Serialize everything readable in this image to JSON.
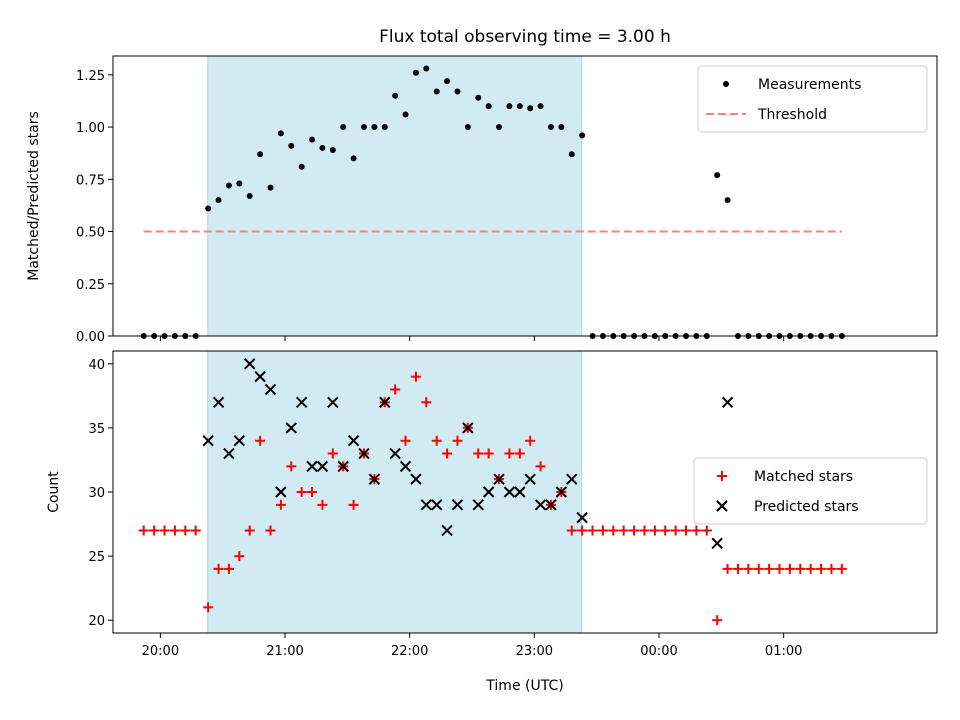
{
  "chart_data": {
    "type": "scatter",
    "title": "Flux total observing time = 3.00 h",
    "xlabel": "Time (UTC)",
    "x_tick_labels": [
      "20:00",
      "21:00",
      "22:00",
      "23:00",
      "00:00",
      "01:00"
    ],
    "x_ticks_hours": [
      20,
      21,
      22,
      23,
      24,
      25
    ],
    "xlim_hours": [
      19.62,
      26.23
    ],
    "shaded_interval_hours": [
      20.38,
      23.38
    ],
    "shade_color": "#add8e6",
    "panels": [
      {
        "ylabel": "Matched/Predicted stars",
        "ylim": [
          0,
          1.34
        ],
        "y_ticks": [
          0.0,
          0.25,
          0.5,
          0.75,
          1.0,
          1.25
        ],
        "y_tick_labels": [
          "0.00",
          "0.25",
          "0.50",
          "0.75",
          "1.00",
          "1.25"
        ],
        "legend": {
          "position": "upper right",
          "entries": [
            "Measurements",
            "Threshold"
          ]
        },
        "series": [
          {
            "name": "Measurements",
            "marker": "dot",
            "color": "#000000",
            "points": [
              [
                "19:52",
                0.0
              ],
              [
                "19:57",
                0.0
              ],
              [
                "20:02",
                0.0
              ],
              [
                "20:07",
                0.0
              ],
              [
                "20:12",
                0.0
              ],
              [
                "20:17",
                0.0
              ],
              [
                "20:23",
                0.61
              ],
              [
                "20:28",
                0.65
              ],
              [
                "20:33",
                0.72
              ],
              [
                "20:38",
                0.73
              ],
              [
                "20:43",
                0.67
              ],
              [
                "20:48",
                0.87
              ],
              [
                "20:53",
                0.71
              ],
              [
                "20:58",
                0.97
              ],
              [
                "21:03",
                0.91
              ],
              [
                "21:08",
                0.81
              ],
              [
                "21:13",
                0.94
              ],
              [
                "21:18",
                0.9
              ],
              [
                "21:23",
                0.89
              ],
              [
                "21:28",
                1.0
              ],
              [
                "21:33",
                0.85
              ],
              [
                "21:38",
                1.0
              ],
              [
                "21:43",
                1.0
              ],
              [
                "21:48",
                1.0
              ],
              [
                "21:53",
                1.15
              ],
              [
                "21:58",
                1.06
              ],
              [
                "22:03",
                1.26
              ],
              [
                "22:08",
                1.28
              ],
              [
                "22:13",
                1.17
              ],
              [
                "22:18",
                1.22
              ],
              [
                "22:23",
                1.17
              ],
              [
                "22:28",
                1.0
              ],
              [
                "22:33",
                1.14
              ],
              [
                "22:38",
                1.1
              ],
              [
                "22:43",
                1.0
              ],
              [
                "22:48",
                1.1
              ],
              [
                "22:53",
                1.1
              ],
              [
                "22:58",
                1.09
              ],
              [
                "23:03",
                1.1
              ],
              [
                "23:08",
                1.0
              ],
              [
                "23:13",
                1.0
              ],
              [
                "23:18",
                0.87
              ],
              [
                "23:23",
                0.96
              ],
              [
                "23:28",
                0.0
              ],
              [
                "23:33",
                0.0
              ],
              [
                "23:38",
                0.0
              ],
              [
                "23:43",
                0.0
              ],
              [
                "23:48",
                0.0
              ],
              [
                "23:53",
                0.0
              ],
              [
                "23:58",
                0.0
              ],
              [
                "00:03",
                0.0
              ],
              [
                "00:08",
                0.0
              ],
              [
                "00:13",
                0.0
              ],
              [
                "00:18",
                0.0
              ],
              [
                "00:23",
                0.0
              ],
              [
                "00:28",
                0.77
              ],
              [
                "00:33",
                0.65
              ],
              [
                "00:38",
                0.0
              ],
              [
                "00:43",
                0.0
              ],
              [
                "00:48",
                0.0
              ],
              [
                "00:53",
                0.0
              ],
              [
                "00:58",
                0.0
              ],
              [
                "01:03",
                0.0
              ],
              [
                "01:08",
                0.0
              ],
              [
                "01:13",
                0.0
              ],
              [
                "01:18",
                0.0
              ],
              [
                "01:23",
                0.0
              ],
              [
                "01:28",
                0.0
              ]
            ]
          },
          {
            "name": "Threshold",
            "marker": "dashed-line",
            "color": "#ff7f7f",
            "points": [
              [
                "19:52",
                0.5
              ],
              [
                "01:28",
                0.5
              ]
            ]
          }
        ]
      },
      {
        "ylabel": "Count",
        "ylim": [
          19,
          41
        ],
        "y_ticks": [
          20,
          25,
          30,
          35,
          40
        ],
        "y_tick_labels": [
          "20",
          "25",
          "30",
          "35",
          "40"
        ],
        "legend": {
          "position": "center right",
          "entries": [
            "Matched stars",
            "Predicted stars"
          ]
        },
        "series": [
          {
            "name": "Matched stars",
            "marker": "plus",
            "color": "#ff0000",
            "points": [
              [
                "19:52",
                27
              ],
              [
                "19:57",
                27
              ],
              [
                "20:02",
                27
              ],
              [
                "20:07",
                27
              ],
              [
                "20:12",
                27
              ],
              [
                "20:17",
                27
              ],
              [
                "20:23",
                21
              ],
              [
                "20:28",
                24
              ],
              [
                "20:33",
                24
              ],
              [
                "20:38",
                25
              ],
              [
                "20:43",
                27
              ],
              [
                "20:48",
                34
              ],
              [
                "20:53",
                27
              ],
              [
                "20:58",
                29
              ],
              [
                "21:03",
                32
              ],
              [
                "21:08",
                30
              ],
              [
                "21:13",
                30
              ],
              [
                "21:18",
                29
              ],
              [
                "21:23",
                33
              ],
              [
                "21:28",
                32
              ],
              [
                "21:33",
                29
              ],
              [
                "21:38",
                33
              ],
              [
                "21:43",
                31
              ],
              [
                "21:48",
                37
              ],
              [
                "21:53",
                38
              ],
              [
                "21:58",
                34
              ],
              [
                "22:03",
                39
              ],
              [
                "22:08",
                37
              ],
              [
                "22:13",
                34
              ],
              [
                "22:18",
                33
              ],
              [
                "22:23",
                34
              ],
              [
                "22:28",
                35
              ],
              [
                "22:33",
                33
              ],
              [
                "22:38",
                33
              ],
              [
                "22:43",
                31
              ],
              [
                "22:48",
                33
              ],
              [
                "22:53",
                33
              ],
              [
                "22:58",
                34
              ],
              [
                "23:03",
                32
              ],
              [
                "23:08",
                29
              ],
              [
                "23:13",
                30
              ],
              [
                "23:18",
                27
              ],
              [
                "23:23",
                27
              ],
              [
                "23:28",
                27
              ],
              [
                "23:33",
                27
              ],
              [
                "23:38",
                27
              ],
              [
                "23:43",
                27
              ],
              [
                "23:48",
                27
              ],
              [
                "23:53",
                27
              ],
              [
                "23:58",
                27
              ],
              [
                "00:03",
                27
              ],
              [
                "00:08",
                27
              ],
              [
                "00:13",
                27
              ],
              [
                "00:18",
                27
              ],
              [
                "00:23",
                27
              ],
              [
                "00:28",
                20
              ],
              [
                "00:33",
                24
              ],
              [
                "00:38",
                24
              ],
              [
                "00:43",
                24
              ],
              [
                "00:48",
                24
              ],
              [
                "00:53",
                24
              ],
              [
                "00:58",
                24
              ],
              [
                "01:03",
                24
              ],
              [
                "01:08",
                24
              ],
              [
                "01:13",
                24
              ],
              [
                "01:18",
                24
              ],
              [
                "01:23",
                24
              ],
              [
                "01:28",
                24
              ]
            ]
          },
          {
            "name": "Predicted stars",
            "marker": "x",
            "color": "#000000",
            "points": [
              [
                "20:23",
                34
              ],
              [
                "20:28",
                37
              ],
              [
                "20:33",
                33
              ],
              [
                "20:38",
                34
              ],
              [
                "20:43",
                40
              ],
              [
                "20:48",
                39
              ],
              [
                "20:53",
                38
              ],
              [
                "20:58",
                30
              ],
              [
                "21:03",
                35
              ],
              [
                "21:08",
                37
              ],
              [
                "21:13",
                32
              ],
              [
                "21:18",
                32
              ],
              [
                "21:23",
                37
              ],
              [
                "21:28",
                32
              ],
              [
                "21:33",
                34
              ],
              [
                "21:38",
                33
              ],
              [
                "21:43",
                31
              ],
              [
                "21:48",
                37
              ],
              [
                "21:53",
                33
              ],
              [
                "21:58",
                32
              ],
              [
                "22:03",
                31
              ],
              [
                "22:08",
                29
              ],
              [
                "22:13",
                29
              ],
              [
                "22:18",
                27
              ],
              [
                "22:23",
                29
              ],
              [
                "22:28",
                35
              ],
              [
                "22:33",
                29
              ],
              [
                "22:38",
                30
              ],
              [
                "22:43",
                31
              ],
              [
                "22:48",
                30
              ],
              [
                "22:53",
                30
              ],
              [
                "22:58",
                31
              ],
              [
                "23:03",
                29
              ],
              [
                "23:08",
                29
              ],
              [
                "23:13",
                30
              ],
              [
                "23:18",
                31
              ],
              [
                "23:23",
                28
              ],
              [
                "00:28",
                26
              ],
              [
                "00:33",
                37
              ]
            ]
          }
        ]
      }
    ]
  }
}
